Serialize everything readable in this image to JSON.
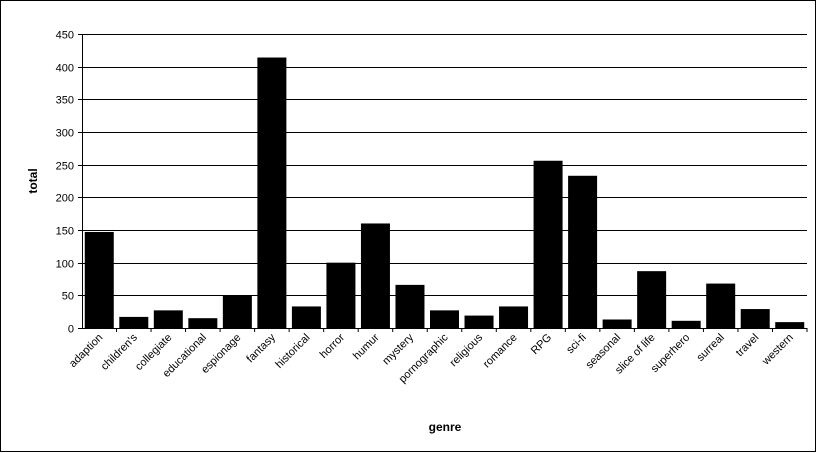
{
  "chart_data": {
    "type": "bar",
    "title": "",
    "xlabel": "genre",
    "ylabel": "total",
    "ylim": [
      0,
      450
    ],
    "yticks": [
      0,
      50,
      100,
      150,
      200,
      250,
      300,
      350,
      400,
      450
    ],
    "grid": true,
    "legend": "none",
    "bar_color": "#000000",
    "categories": [
      "adaption",
      "children's",
      "collegiate",
      "educational",
      "espionage",
      "fantasy",
      "historical",
      "horror",
      "humur",
      "mystery",
      "pornographic",
      "religious",
      "romance",
      "RPG",
      "sci-fi",
      "seasonal",
      "slice of life",
      "superhero",
      "surreal",
      "travel",
      "western"
    ],
    "values": [
      147,
      17,
      27,
      15,
      50,
      414,
      33,
      100,
      160,
      66,
      27,
      19,
      33,
      256,
      233,
      13,
      87,
      11,
      68,
      29,
      9
    ]
  }
}
